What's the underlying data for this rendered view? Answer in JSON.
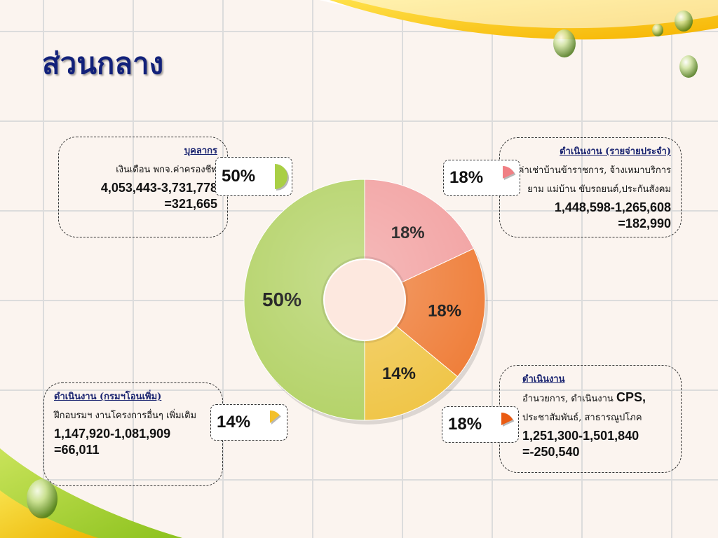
{
  "slide": {
    "title": "ส่วนกลาง"
  },
  "chart_data": {
    "type": "pie",
    "categories": [
      "ดำเนินงาน (รายจ่ายประจำ)",
      "ดำเนินงาน",
      "ดำเนินงาน (กรมฯโอนเพิ่ม)",
      "บุคลากร"
    ],
    "values": [
      18,
      18,
      14,
      50
    ],
    "labels": [
      "18%",
      "18%",
      "14%",
      "50%"
    ],
    "colors": [
      "#f2a3a3",
      "#ef7f3b",
      "#f0c64a",
      "#b5d36a"
    ]
  },
  "boxes": {
    "personnel": {
      "heading": "บุคลากร",
      "text": "เงินเดือน พกจ.ค่าครองชีพ",
      "calc": "4,053,443-3,731,778",
      "result": "=321,665",
      "badge": "50%",
      "color": "#a9cf45"
    },
    "operating_regular": {
      "heading": "ดำเนินงาน (รายจ่ายประจำ)",
      "text1": "ค่าเช่าบ้านข้าราชการ, จ้างเหมาบริการ",
      "text2": "ยาม แม่บ้าน ขับรถยนต์,ประกันสังคม",
      "calc": "1,448,598-1,265,608",
      "result": "=182,990",
      "badge": "18%",
      "color": "#f07f84"
    },
    "operating": {
      "heading": "ดำเนินงาน",
      "text1_a": "อำนวยการ, ดำเนินงาน ",
      "text1_b": "CPS,",
      "text2": "ประชาสัมพันธ์, สาธารณูปโภค",
      "calc": "1,251,300-1,501,840",
      "result": "=-250,540",
      "badge": "18%",
      "color": "#ea5b12"
    },
    "operating_transfer": {
      "heading": "ดำเนินงาน (กรมฯโอนเพิ่ม)",
      "text": "ฝึกอบรมฯ งานโครงการอื่นๆ เพิ่มเติม",
      "calc": "1,147,920-1,081,909",
      "result": "=66,011",
      "badge": "14%",
      "color": "#f3c02a"
    }
  }
}
